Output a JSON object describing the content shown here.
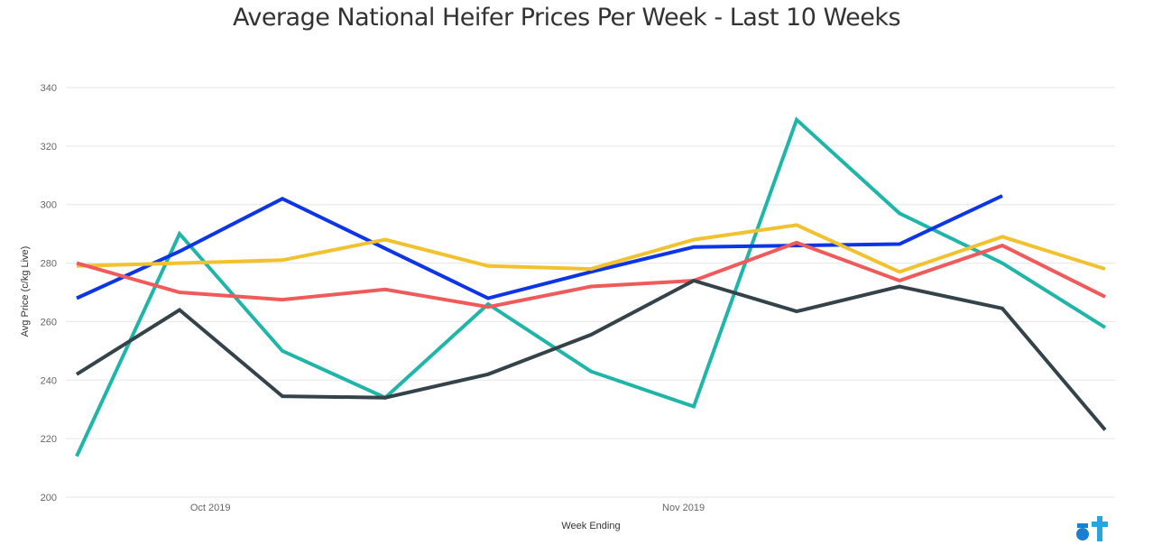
{
  "chart_data": {
    "type": "line",
    "title": "Average National Heifer Prices Per Week - Last 10 Weeks",
    "xlabel": "Week Ending",
    "ylabel": "Avg Price (c/kg Live)",
    "ylim": [
      200,
      340
    ],
    "y_ticks": [
      200,
      220,
      240,
      260,
      280,
      300,
      320,
      340
    ],
    "x_tick_labels": [
      {
        "label": "Oct 2019",
        "at_index": 1.3
      },
      {
        "label": "Nov 2019",
        "at_index": 5.9
      }
    ],
    "grid": true,
    "legend": "none",
    "series": [
      {
        "color": "#1fb5a8",
        "values": [
          214,
          290,
          250,
          234,
          266,
          243,
          231,
          329,
          297,
          280,
          258
        ]
      },
      {
        "color": "#0b35e6",
        "values": [
          268,
          284,
          302,
          285,
          268,
          277,
          285.5,
          286,
          286.5,
          303,
          null
        ]
      },
      {
        "color": "#f2c12e",
        "values": [
          279,
          280,
          281,
          288,
          279,
          278,
          288,
          293,
          277,
          289,
          278
        ]
      },
      {
        "color": "#f05a5a",
        "values": [
          280,
          270,
          267.5,
          271,
          265,
          272,
          274,
          287,
          274,
          286,
          268.5
        ]
      },
      {
        "color": "#34434a",
        "values": [
          242,
          264,
          234.5,
          234,
          242,
          255.5,
          274,
          263.5,
          272,
          264.5,
          223
        ]
      }
    ]
  }
}
